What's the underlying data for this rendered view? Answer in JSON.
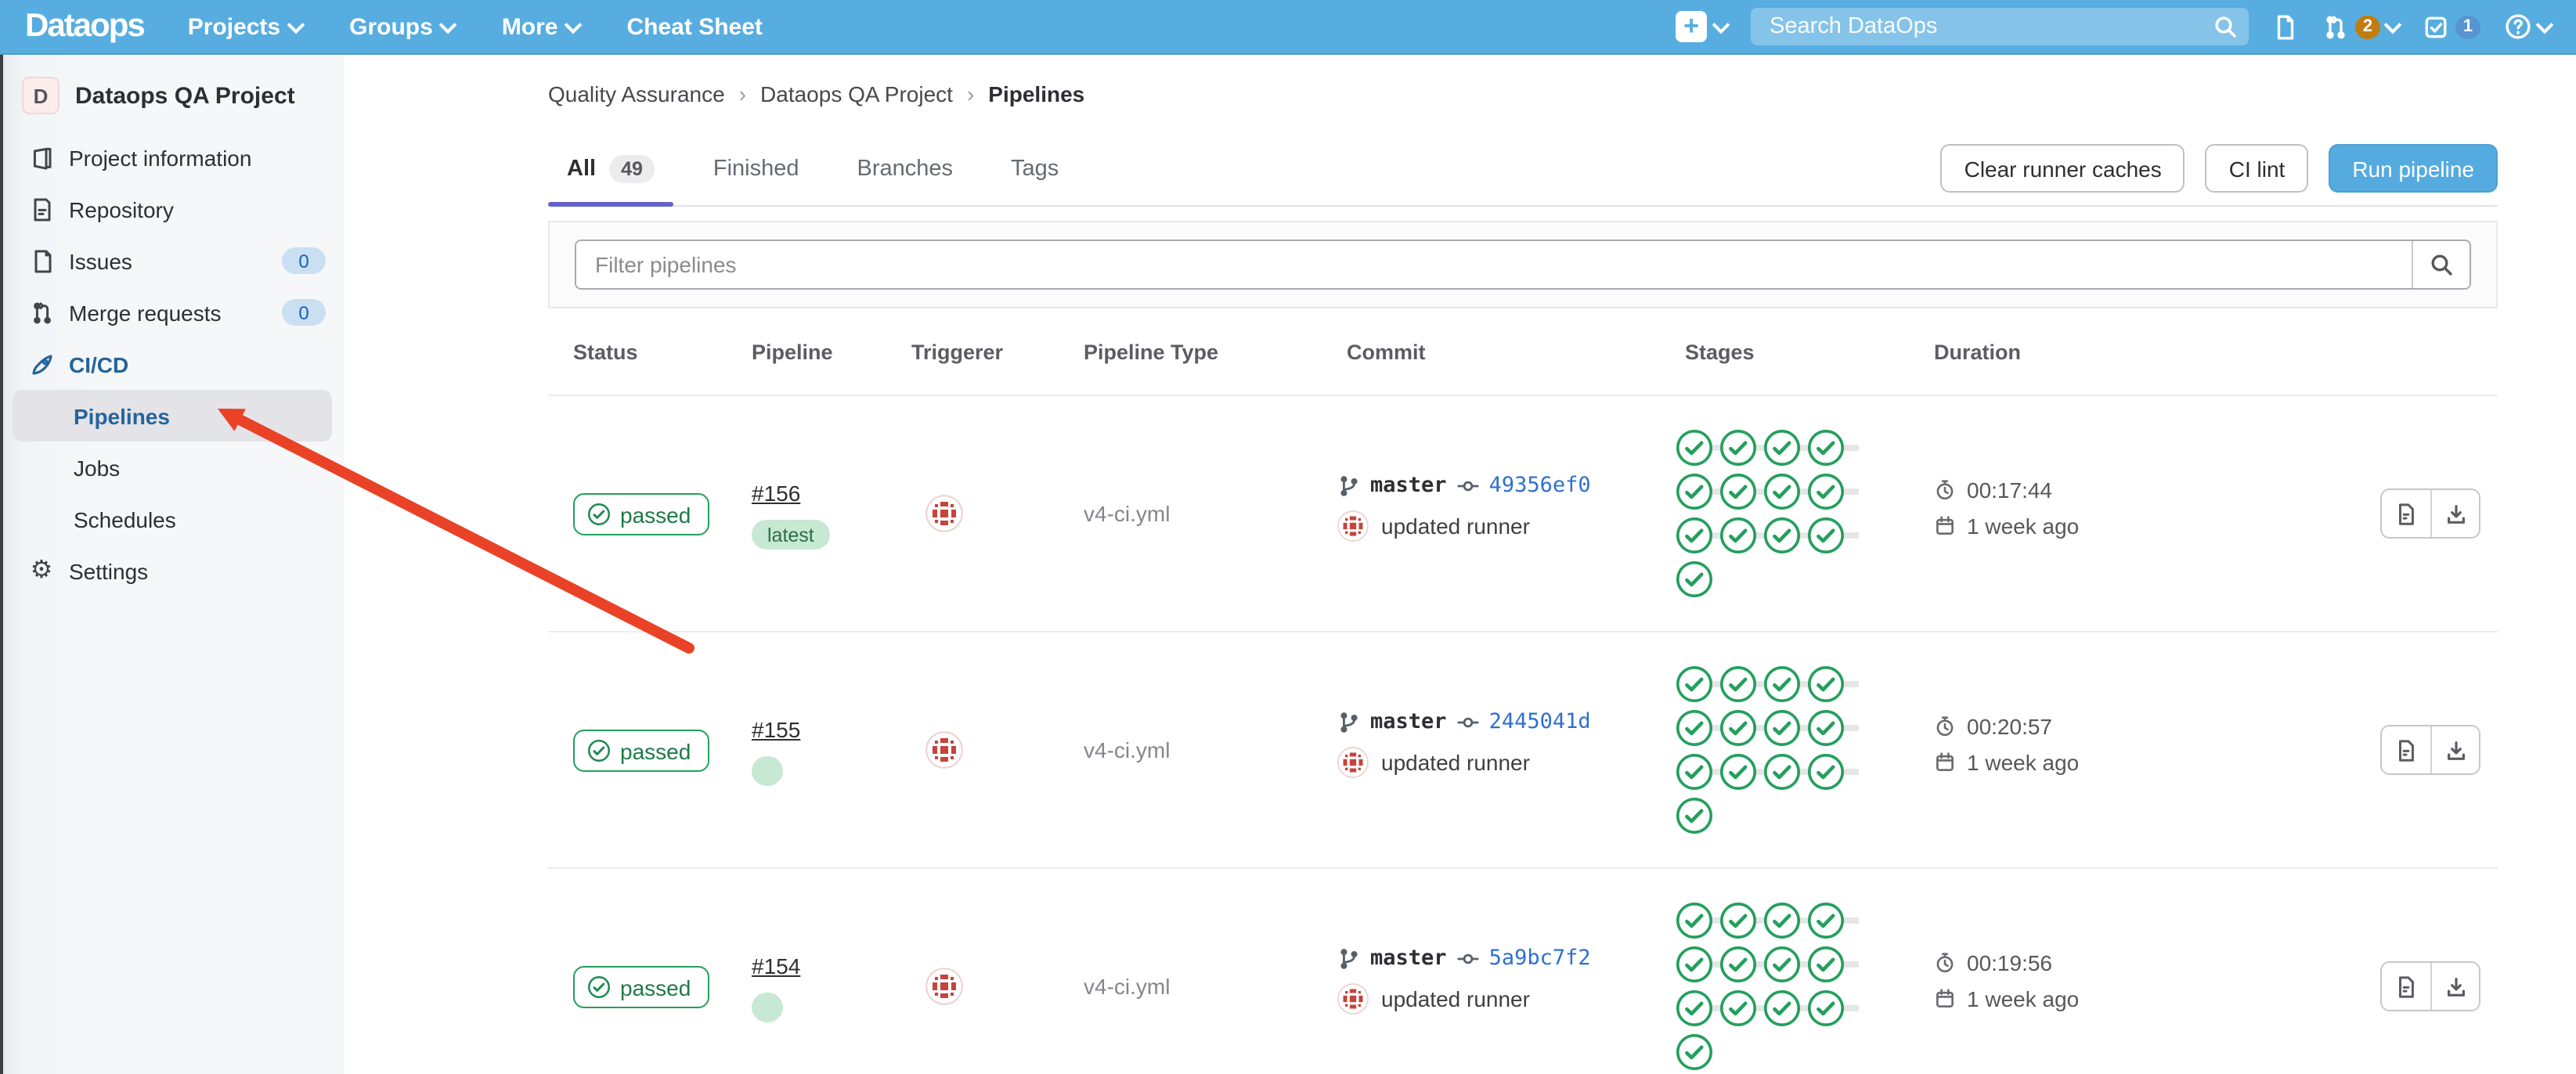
{
  "colors": {
    "navbar_blue": "#57ade0",
    "primary_button_blue": "#55abdf",
    "active_tab_indigo": "#6362c6",
    "success_green": "#249f5d",
    "link_blue": "#2f6fd0",
    "sidebar_active_blue": "#26639b",
    "arrow_red": "#ea4226"
  },
  "navbar": {
    "brand": "Dataops",
    "links": [
      {
        "label": "Projects"
      },
      {
        "label": "Groups"
      },
      {
        "label": "More"
      },
      {
        "label": "Cheat Sheet"
      }
    ],
    "search_placeholder": "Search DataOps",
    "merge_requests_badge": "2",
    "todos_badge": "1"
  },
  "sidebar": {
    "project_initial": "D",
    "project_title": "Dataops QA Project",
    "items": [
      {
        "label": "Project information"
      },
      {
        "label": "Repository"
      },
      {
        "label": "Issues",
        "badge": "0"
      },
      {
        "label": "Merge requests",
        "badge": "0"
      },
      {
        "label": "CI/CD"
      },
      {
        "label": "Pipelines"
      },
      {
        "label": "Jobs"
      },
      {
        "label": "Schedules"
      },
      {
        "label": "Settings"
      }
    ]
  },
  "breadcrumb": {
    "items": [
      "Quality Assurance",
      "Dataops QA Project",
      "Pipelines"
    ]
  },
  "page": {
    "tabs": [
      {
        "label": "All",
        "count": "49"
      },
      {
        "label": "Finished"
      },
      {
        "label": "Branches"
      },
      {
        "label": "Tags"
      }
    ],
    "buttons": {
      "clear_caches": "Clear runner caches",
      "ci_lint": "CI lint",
      "run_pipeline": "Run pipeline"
    },
    "filter_placeholder": "Filter pipelines"
  },
  "table": {
    "headers": [
      "Status",
      "Pipeline",
      "Triggerer",
      "Pipeline Type",
      "Commit",
      "Stages",
      "Duration"
    ],
    "rows": [
      {
        "status": "passed",
        "id": "#156",
        "latest_badge": "latest",
        "type": "v4-ci.yml",
        "branch": "master",
        "hash": "49356ef0",
        "message": "updated runner",
        "stages_passed": 13,
        "duration": "00:17:44",
        "age": "1 week ago"
      },
      {
        "status": "passed",
        "id": "#155",
        "type": "v4-ci.yml",
        "branch": "master",
        "hash": "2445041d",
        "message": "updated runner",
        "stages_passed": 13,
        "duration": "00:20:57",
        "age": "1 week ago"
      },
      {
        "status": "passed",
        "id": "#154",
        "type": "v4-ci.yml",
        "branch": "master",
        "hash": "5a9bc7f2",
        "message": "updated runner",
        "stages_passed": 13,
        "duration": "00:19:56",
        "age": "1 week ago"
      }
    ]
  }
}
